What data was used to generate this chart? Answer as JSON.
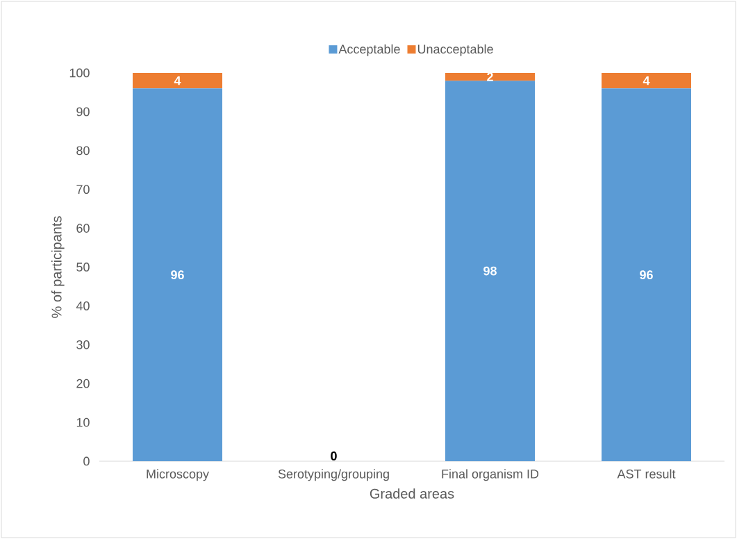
{
  "chart_data": {
    "type": "bar",
    "stacked": true,
    "xlabel": "Graded areas",
    "ylabel": "% of participants",
    "categories": [
      "Microscopy",
      "Serotyping/grouping",
      "Final organism ID",
      "AST result"
    ],
    "series": [
      {
        "name": "Acceptable",
        "color": "#5b9bd5",
        "values": [
          96,
          0,
          98,
          96
        ],
        "value_labels": [
          "96",
          "0",
          "98",
          "96"
        ]
      },
      {
        "name": "Unacceptable",
        "color": "#ed7d31",
        "values": [
          4,
          0,
          2,
          4
        ],
        "value_labels": [
          "4",
          null,
          "2",
          "4"
        ]
      }
    ],
    "ylim": [
      0,
      100
    ],
    "yticks": [
      0,
      10,
      20,
      30,
      40,
      50,
      60,
      70,
      80,
      90,
      100
    ],
    "legend": "top",
    "grid": false
  }
}
